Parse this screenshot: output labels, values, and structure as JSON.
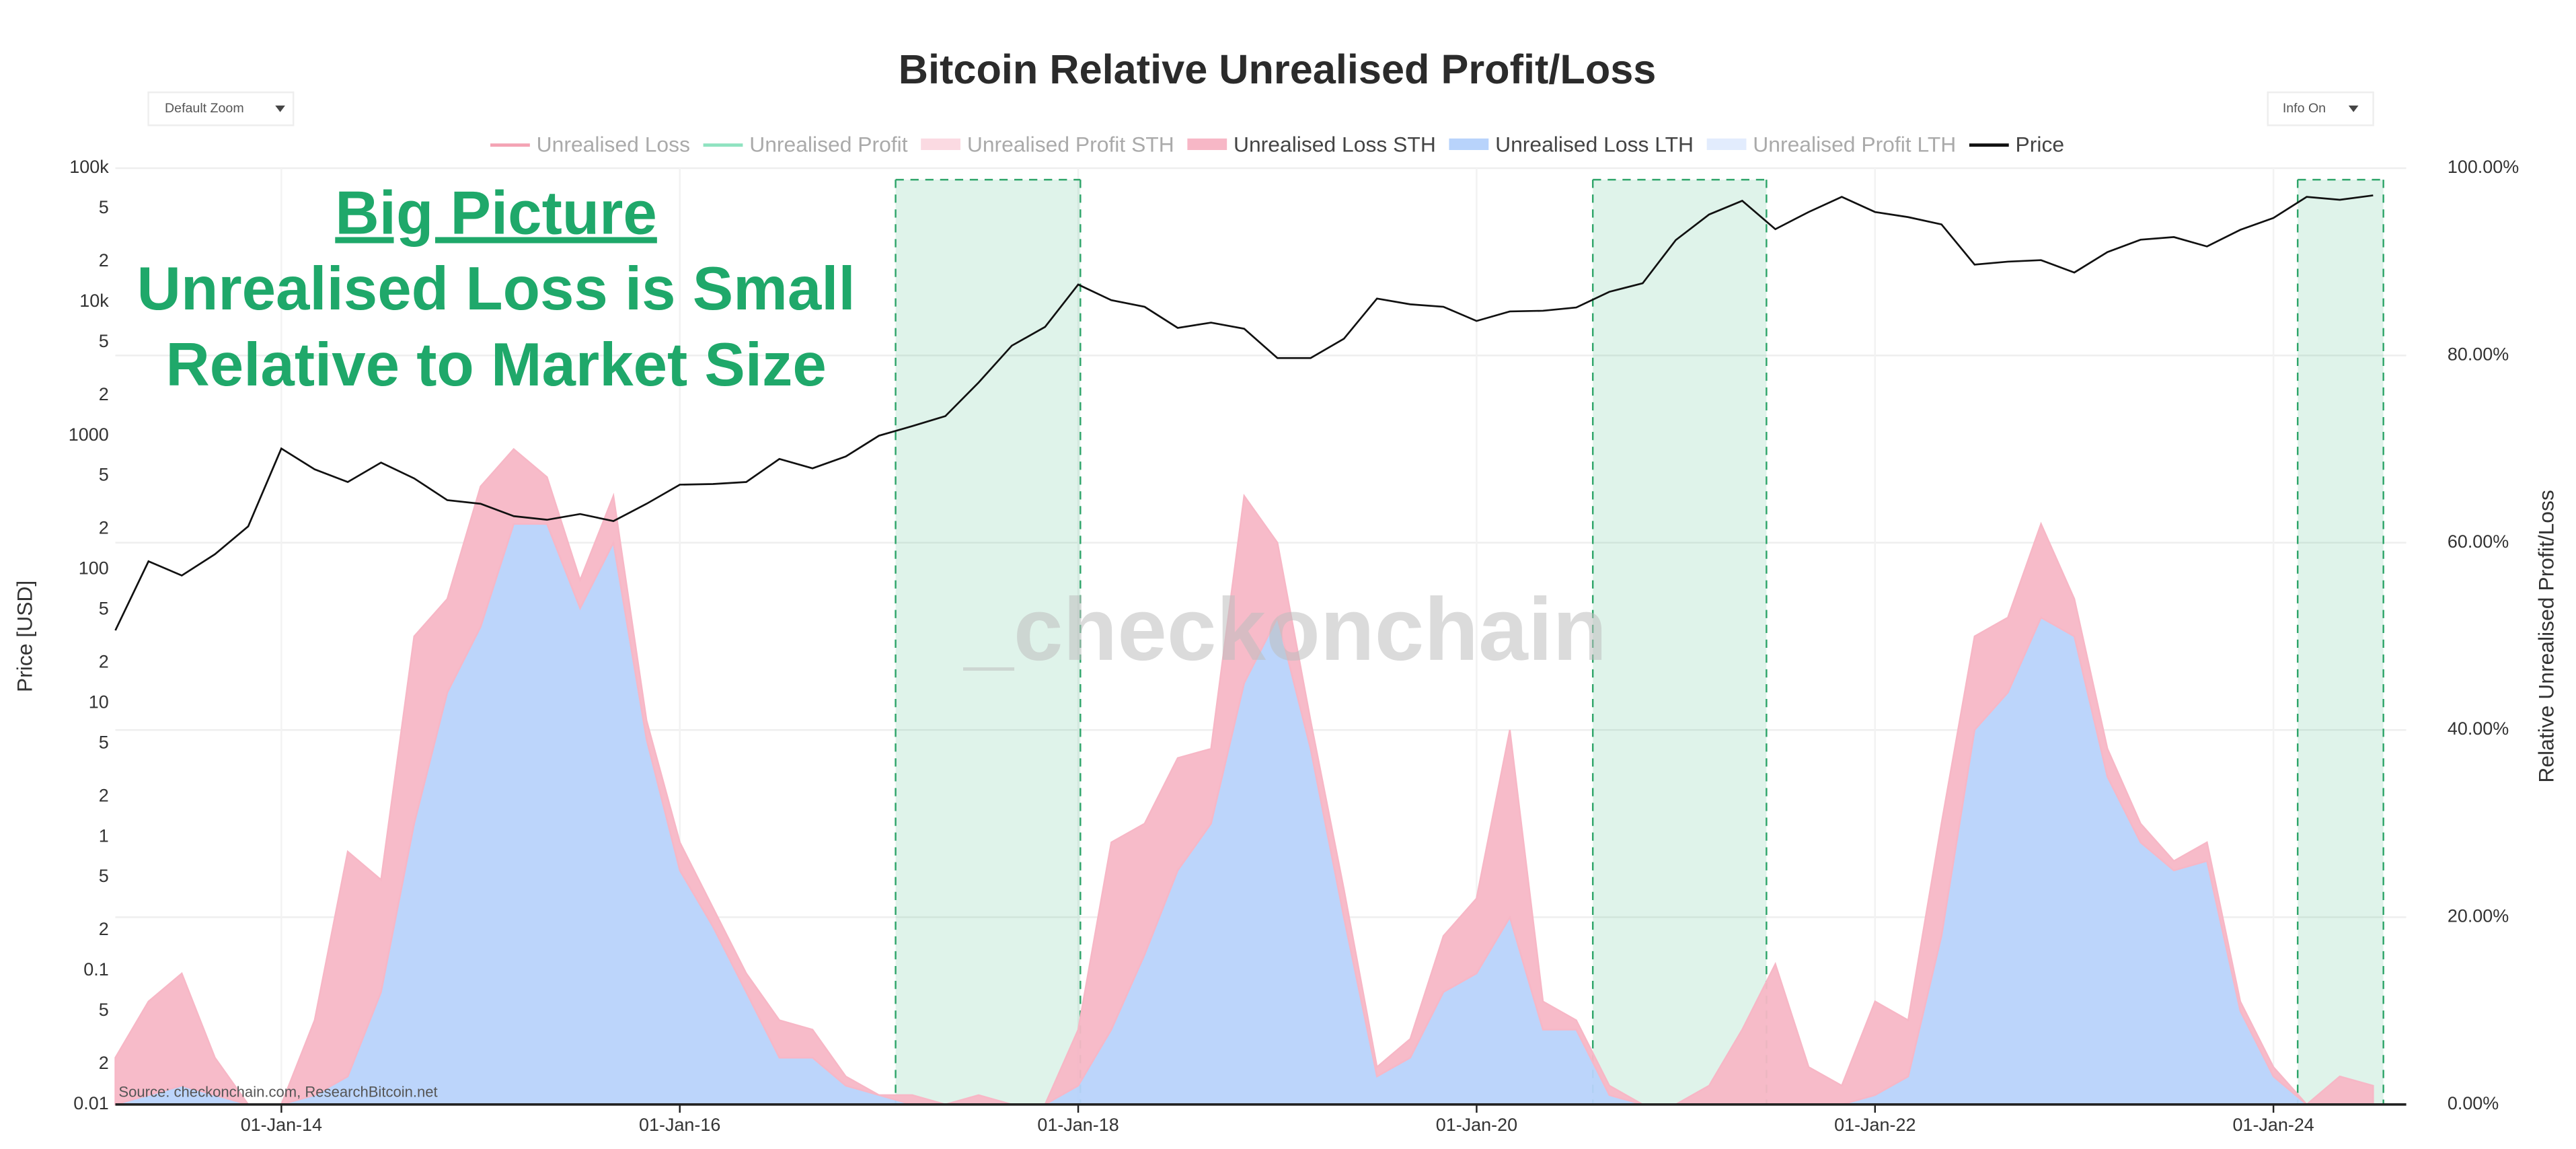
{
  "chart_data": {
    "type": "area-line",
    "title": "Bitcoin Relative Unrealised Profit/Loss",
    "controls": {
      "zoom": "Default Zoom",
      "info": "Info On"
    },
    "annotations": [
      "Big Picture",
      "Unrealised Loss is Small",
      "Relative to Market Size"
    ],
    "annotation_color": "#1fa86a",
    "watermark": "_checkonchain",
    "source": "Source: checkonchain.com, ResearchBitcoin.net",
    "y_label": "Price [USD]",
    "y2_label": "Relative Unrealised Profit/Loss",
    "log_y": true,
    "grid": true,
    "stacked": true,
    "xlim": [
      "2013-03-01",
      "2024-09-01"
    ],
    "xticks": [
      {
        "value": "2014-01-01",
        "label": "01-Jan-14"
      },
      {
        "value": "2016-01-01",
        "label": "01-Jan-16"
      },
      {
        "value": "2018-01-01",
        "label": "01-Jan-18"
      },
      {
        "value": "2020-01-01",
        "label": "01-Jan-20"
      },
      {
        "value": "2022-01-01",
        "label": "01-Jan-22"
      },
      {
        "value": "2024-01-01",
        "label": "01-Jan-24"
      }
    ],
    "ylim": [
      0.01,
      100000
    ],
    "yticks": [
      0.01,
      {
        "value": 0.02,
        "label": "2"
      },
      {
        "value": 0.05,
        "label": "5"
      },
      0.1,
      {
        "value": 0.2,
        "label": "2"
      },
      {
        "value": 0.5,
        "label": "5"
      },
      1,
      2,
      5,
      10,
      {
        "value": 20,
        "label": "2"
      },
      {
        "value": 50,
        "label": "5"
      },
      100,
      {
        "value": 200,
        "label": "2"
      },
      {
        "value": 500,
        "label": "5"
      },
      1000,
      {
        "value": 2000,
        "label": "2"
      },
      {
        "value": 5000,
        "label": "5"
      },
      {
        "value": 10000,
        "label": "10k"
      },
      {
        "value": 20000,
        "label": "2"
      },
      {
        "value": 50000,
        "label": "5"
      },
      {
        "value": 100000,
        "label": "100k"
      }
    ],
    "y2lim": [
      0,
      100
    ],
    "y2ticks": [
      {
        "value": 0,
        "label": "0.00%"
      },
      {
        "value": 20,
        "label": "20.00%"
      },
      {
        "value": 40,
        "label": "40.00%"
      },
      {
        "value": 60,
        "label": "60.00%"
      },
      {
        "value": 80,
        "label": "80.00%"
      },
      {
        "value": 100,
        "label": "100.00%"
      }
    ],
    "shaded_periods": [
      [
        "2017-02-01",
        "2018-01-05"
      ],
      [
        "2020-08-01",
        "2021-06-15"
      ],
      [
        "2024-02-15",
        "2024-07-20"
      ]
    ],
    "x": [
      "2013-03-01",
      "2013-05-01",
      "2013-07-01",
      "2013-09-01",
      "2013-11-01",
      "2014-01-01",
      "2014-03-01",
      "2014-05-01",
      "2014-07-01",
      "2014-09-01",
      "2014-11-01",
      "2015-01-01",
      "2015-03-01",
      "2015-05-01",
      "2015-07-01",
      "2015-09-01",
      "2015-11-01",
      "2016-01-01",
      "2016-03-01",
      "2016-05-01",
      "2016-07-01",
      "2016-09-01",
      "2016-11-01",
      "2017-01-01",
      "2017-03-01",
      "2017-05-01",
      "2017-07-01",
      "2017-09-01",
      "2017-11-01",
      "2018-01-01",
      "2018-03-01",
      "2018-05-01",
      "2018-07-01",
      "2018-09-01",
      "2018-11-01",
      "2019-01-01",
      "2019-03-01",
      "2019-05-01",
      "2019-07-01",
      "2019-09-01",
      "2019-11-01",
      "2020-01-01",
      "2020-03-01",
      "2020-05-01",
      "2020-07-01",
      "2020-09-01",
      "2020-11-01",
      "2021-01-01",
      "2021-03-01",
      "2021-05-01",
      "2021-07-01",
      "2021-09-01",
      "2021-11-01",
      "2022-01-01",
      "2022-03-01",
      "2022-05-01",
      "2022-07-01",
      "2022-09-01",
      "2022-11-01",
      "2023-01-01",
      "2023-03-01",
      "2023-05-01",
      "2023-07-01",
      "2023-09-01",
      "2023-11-01",
      "2024-01-01",
      "2024-03-01",
      "2024-05-01",
      "2024-07-01"
    ],
    "series": [
      {
        "name": "Unrealised Loss",
        "color": "#f4a3b4",
        "visible": false
      },
      {
        "name": "Unrealised Profit",
        "color": "#8fe3c0",
        "visible": false
      },
      {
        "name": "Unrealised Profit STH",
        "color": "#f9c2cf",
        "visible": false
      },
      {
        "name": "Unrealised Loss STH",
        "color": "#f7b7c6",
        "axis": "y2",
        "visible": true,
        "values": [
          5,
          10,
          12,
          4,
          0,
          0,
          8,
          24,
          12,
          20,
          10,
          15,
          8,
          5,
          3,
          5,
          2,
          3,
          2,
          2,
          4,
          3,
          1,
          0,
          1,
          0,
          1,
          0,
          0,
          6,
          20,
          14,
          12,
          8,
          20,
          8,
          3,
          3,
          1,
          2,
          6,
          8,
          20,
          3,
          1,
          1,
          0,
          0,
          2,
          8,
          15,
          4,
          2,
          10,
          6,
          12,
          10,
          8,
          10,
          4,
          3,
          2,
          1,
          2,
          1,
          1,
          0,
          3,
          2
        ]
      },
      {
        "name": "Unrealised Loss LTH",
        "color": "#b8d3fb",
        "axis": "y2",
        "visible": true,
        "values": [
          0,
          1,
          2,
          1,
          0,
          0,
          1,
          3,
          12,
          30,
          44,
          51,
          62,
          62,
          53,
          60,
          39,
          25,
          19,
          12,
          5,
          5,
          2,
          1,
          0,
          0,
          0,
          0,
          0,
          2,
          8,
          16,
          25,
          30,
          45,
          52,
          38,
          20,
          3,
          5,
          12,
          14,
          20,
          8,
          8,
          1,
          0,
          0,
          0,
          0,
          0,
          0,
          0,
          1,
          3,
          18,
          40,
          44,
          52,
          50,
          35,
          28,
          25,
          26,
          10,
          3,
          0,
          0,
          0
        ]
      },
      {
        "name": "Unrealised Profit LTH",
        "color": "#cfe0fb",
        "visible": false
      },
      {
        "name": "Price",
        "color": "#111111",
        "visible": true,
        "values": [
          35,
          115,
          90,
          130,
          210,
          800,
          560,
          450,
          630,
          480,
          330,
          310,
          250,
          235,
          260,
          230,
          310,
          430,
          435,
          450,
          670,
          570,
          700,
          1000,
          1180,
          1400,
          2500,
          4700,
          6500,
          13500,
          10300,
          9200,
          6400,
          7000,
          6300,
          3800,
          3800,
          5300,
          10600,
          9600,
          9200,
          7200,
          8500,
          8600,
          9100,
          11900,
          13800,
          29000,
          45000,
          57000,
          35000,
          47000,
          61000,
          47000,
          43000,
          38000,
          19000,
          20000,
          20500,
          16600,
          23600,
          29200,
          30500,
          26000,
          34600,
          42500,
          61000,
          58000,
          62700
        ]
      }
    ]
  }
}
